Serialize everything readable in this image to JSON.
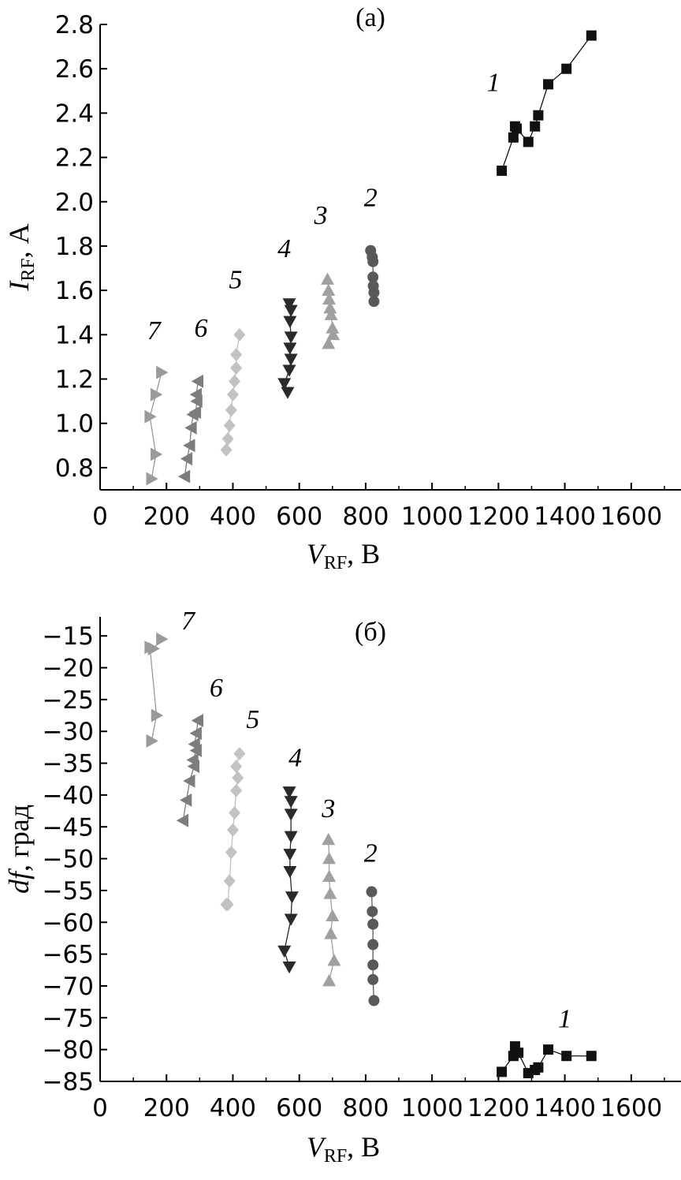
{
  "chart_data": [
    {
      "type": "scatter",
      "panel_label": "(а)",
      "ylabel": {
        "italic": "I",
        "sub": "RF",
        "rest": ", А"
      },
      "xlabel": {
        "italic": "V",
        "sub": "RF",
        "rest": ", В"
      },
      "xlim": [
        0,
        1750
      ],
      "ylim": [
        0.7,
        2.8
      ],
      "xticks": [
        0,
        200,
        400,
        600,
        800,
        1000,
        1200,
        1400,
        1600
      ],
      "xtick_labels": [
        "0",
        "200",
        "400",
        "600",
        "800",
        "1000",
        "1200",
        "1400",
        "1600"
      ],
      "yticks": [
        0.8,
        1.0,
        1.2,
        1.4,
        1.6,
        1.8,
        2.0,
        2.2,
        2.4,
        2.6,
        2.8
      ],
      "ytick_labels": [
        "0.8",
        "1.0",
        "1.2",
        "1.4",
        "1.6",
        "1.8",
        "2.0",
        "2.2",
        "2.4",
        "2.6",
        "2.8"
      ],
      "grid": false,
      "series": [
        {
          "label": "1",
          "marker": "square",
          "color": "#111111",
          "label_pos": [
            1185,
            2.5
          ],
          "x": [
            1210,
            1245,
            1250,
            1255,
            1290,
            1310,
            1320,
            1350,
            1405,
            1480
          ],
          "y": [
            2.14,
            2.29,
            2.34,
            2.33,
            2.27,
            2.34,
            2.39,
            2.53,
            2.6,
            2.75
          ]
        },
        {
          "label": "2",
          "marker": "circle",
          "color": "#595959",
          "label_pos": [
            815,
            1.98
          ],
          "x": [
            815,
            820,
            822,
            822,
            823,
            825,
            825
          ],
          "y": [
            1.78,
            1.75,
            1.73,
            1.66,
            1.62,
            1.59,
            1.55
          ]
        },
        {
          "label": "3",
          "marker": "triangle-up",
          "color": "#a0a0a0",
          "label_pos": [
            665,
            1.9
          ],
          "x": [
            685,
            688,
            690,
            693,
            696,
            700,
            702,
            688
          ],
          "y": [
            1.65,
            1.6,
            1.56,
            1.52,
            1.49,
            1.43,
            1.4,
            1.36
          ]
        },
        {
          "label": "4",
          "marker": "triangle-down",
          "color": "#2a2a2a",
          "label_pos": [
            555,
            1.75
          ],
          "x": [
            570,
            575,
            572,
            575,
            572,
            575,
            570,
            555,
            565
          ],
          "y": [
            1.54,
            1.51,
            1.46,
            1.39,
            1.34,
            1.29,
            1.24,
            1.18,
            1.14
          ]
        },
        {
          "label": "5",
          "marker": "diamond",
          "color": "#c2c2c2",
          "label_pos": [
            408,
            1.61
          ],
          "x": [
            420,
            410,
            410,
            405,
            400,
            395,
            390,
            385,
            380
          ],
          "y": [
            1.4,
            1.31,
            1.25,
            1.19,
            1.13,
            1.06,
            0.99,
            0.93,
            0.88
          ]
        },
        {
          "label": "6",
          "marker": "triangle-left",
          "color": "#7d7d7d",
          "label_pos": [
            304,
            1.39
          ],
          "x": [
            295,
            290,
            292,
            288,
            280,
            275,
            270,
            262,
            255
          ],
          "y": [
            1.19,
            1.13,
            1.1,
            1.05,
            1.04,
            0.98,
            0.9,
            0.84,
            0.76
          ]
        },
        {
          "label": "7",
          "marker": "triangle-right",
          "color": "#9a9a9a",
          "label_pos": [
            162,
            1.38
          ],
          "x": [
            185,
            168,
            150,
            168,
            155
          ],
          "y": [
            1.23,
            1.13,
            1.03,
            0.86,
            0.75
          ]
        }
      ]
    },
    {
      "type": "scatter",
      "panel_label": "(б)",
      "ylabel": {
        "italic": "df",
        "sub": "",
        "rest": ", град"
      },
      "xlabel": {
        "italic": "V",
        "sub": "RF",
        "rest": ", В"
      },
      "xlim": [
        0,
        1750
      ],
      "ylim": [
        -85,
        -12
      ],
      "xticks": [
        0,
        200,
        400,
        600,
        800,
        1000,
        1200,
        1400,
        1600
      ],
      "xtick_labels": [
        "0",
        "200",
        "400",
        "600",
        "800",
        "1000",
        "1200",
        "1400",
        "1600"
      ],
      "yticks": [
        -85,
        -80,
        -75,
        -70,
        -65,
        -60,
        -55,
        -50,
        -45,
        -40,
        -35,
        -30,
        -25,
        -20,
        -15
      ],
      "ytick_labels": [
        "−85",
        "−80",
        "−75",
        "−70",
        "−65",
        "−60",
        "−55",
        "−50",
        "−45",
        "−40",
        "−35",
        "−30",
        "−25",
        "−20",
        "−15"
      ],
      "grid": false,
      "series": [
        {
          "label": "1",
          "marker": "square",
          "color": "#111111",
          "label_pos": [
            1400,
            -76.5
          ],
          "x": [
            1210,
            1245,
            1250,
            1260,
            1290,
            1310,
            1320,
            1350,
            1405,
            1480
          ],
          "y": [
            -83.5,
            -81.0,
            -79.5,
            -80.5,
            -83.7,
            -83.2,
            -82.8,
            -80.0,
            -81.0,
            -81.0
          ]
        },
        {
          "label": "2",
          "marker": "circle",
          "color": "#595959",
          "label_pos": [
            815,
            -50.5
          ],
          "x": [
            818,
            820,
            822,
            822,
            822,
            822,
            825
          ],
          "y": [
            -55.2,
            -58.3,
            -60.3,
            -63.5,
            -66.7,
            -69.0,
            -72.3
          ]
        },
        {
          "label": "3",
          "marker": "triangle-up",
          "color": "#a0a0a0",
          "label_pos": [
            688,
            -43.5
          ],
          "x": [
            688,
            690,
            690,
            693,
            700,
            695,
            705,
            690
          ],
          "y": [
            -47.0,
            -50.0,
            -52.8,
            -55.5,
            -59.0,
            -61.8,
            -66.0,
            -69.2
          ]
        },
        {
          "label": "4",
          "marker": "triangle-down",
          "color": "#2a2a2a",
          "label_pos": [
            588,
            -35.5
          ],
          "x": [
            570,
            575,
            575,
            575,
            572,
            572,
            578,
            575,
            555,
            570
          ],
          "y": [
            -39.5,
            -41.0,
            -43.0,
            -46.5,
            -49.3,
            -52.0,
            -56.0,
            -59.5,
            -64.5,
            -67.0
          ]
        },
        {
          "label": "5",
          "marker": "diamond",
          "color": "#c2c2c2",
          "label_pos": [
            460,
            -29.5
          ],
          "x": [
            420,
            410,
            415,
            410,
            405,
            400,
            395,
            390,
            385,
            380
          ],
          "y": [
            -33.5,
            -35.5,
            -37.3,
            -39.3,
            -42.8,
            -45.5,
            -49.0,
            -53.5,
            -57.2,
            -57.2
          ]
        },
        {
          "label": "6",
          "marker": "triangle-left",
          "color": "#7d7d7d",
          "label_pos": [
            350,
            -24.5
          ],
          "x": [
            295,
            290,
            285,
            290,
            280,
            283,
            270,
            260,
            250
          ],
          "y": [
            -28.3,
            -30.3,
            -32.0,
            -33.0,
            -34.5,
            -35.5,
            -37.8,
            -40.8,
            -44.0
          ]
        },
        {
          "label": "7",
          "marker": "triangle-right",
          "color": "#9a9a9a",
          "label_pos": [
            265,
            -14.0
          ],
          "x": [
            185,
            160,
            150,
            170,
            155
          ],
          "y": [
            -15.5,
            -17.0,
            -16.8,
            -27.5,
            -31.5
          ]
        }
      ]
    }
  ]
}
